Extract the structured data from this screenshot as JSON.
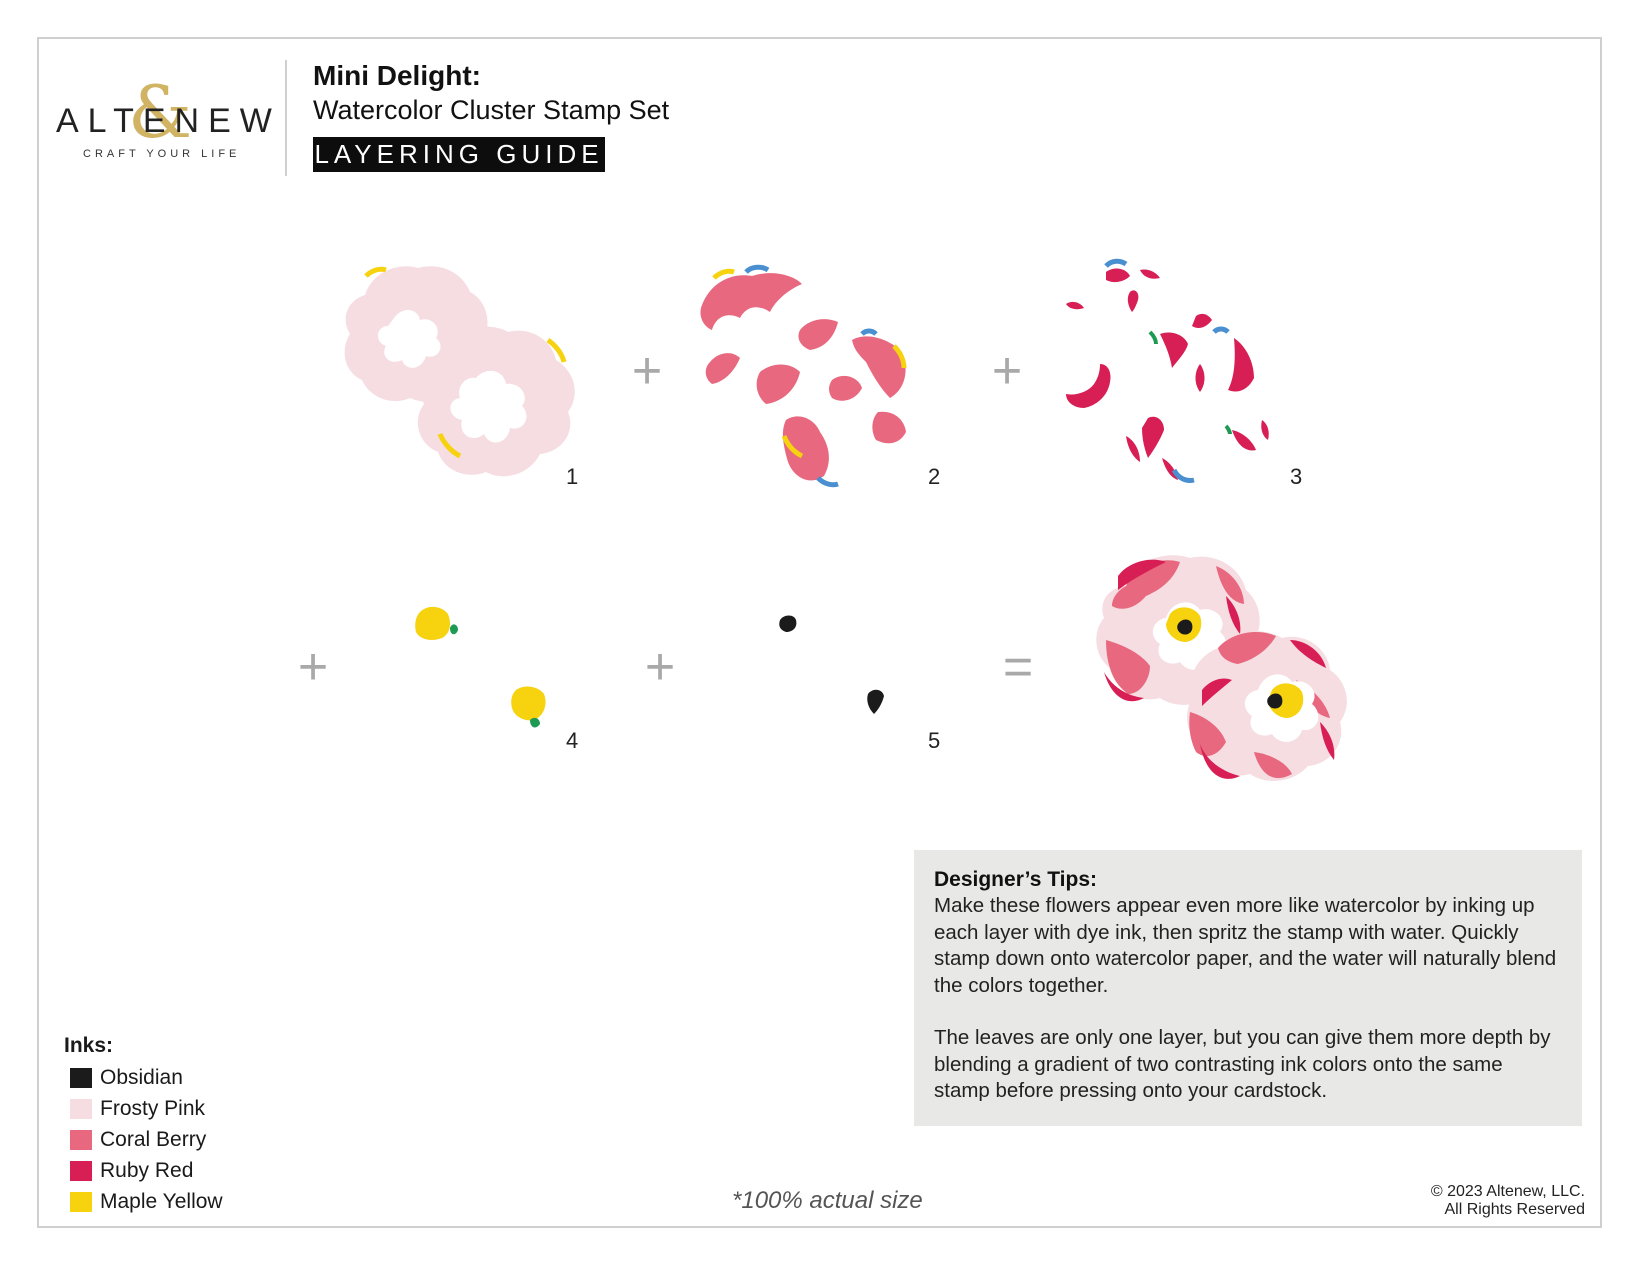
{
  "brand": {
    "wordmark": "ALTENEW",
    "tagline": "CRAFT YOUR LIFE",
    "ampersand": "&"
  },
  "header": {
    "title": "Mini Delight:",
    "subtitle": "Watercolor Cluster Stamp Set",
    "badge": "LAYERING GUIDE"
  },
  "steps": [
    {
      "number": "1"
    },
    {
      "number": "2"
    },
    {
      "number": "3"
    },
    {
      "number": "4"
    },
    {
      "number": "5"
    }
  ],
  "operators": {
    "plus": "+",
    "equals": "="
  },
  "tips": {
    "title": "Designer’s Tips:",
    "paragraphs": [
      "Make these flowers appear even more like watercolor by inking up each layer with dye ink, then spritz the stamp with water. Quickly stamp down onto watercolor paper, and the water will naturally blend the colors together.",
      "The leaves are only one layer, but you can give them more depth by blending a gradient of two contrasting ink colors onto the same stamp before pressing onto your cardstock."
    ]
  },
  "inks": {
    "title": "Inks:",
    "items": [
      {
        "name": "Obsidian",
        "color": "#1b1b1b"
      },
      {
        "name": "Frosty Pink",
        "color": "#f5dde2"
      },
      {
        "name": "Coral Berry",
        "color": "#e8697f"
      },
      {
        "name": "Ruby Red",
        "color": "#d81f55"
      },
      {
        "name": "Maple Yellow",
        "color": "#f6d20f"
      }
    ]
  },
  "footer": {
    "note": "*100% actual size",
    "copyright_line1": "© 2023 Altenew, LLC.",
    "copyright_line2": "All Rights Reserved"
  },
  "colors": {
    "frosty": "#f5dde2",
    "coral": "#e8697f",
    "ruby": "#d81f55",
    "yellow": "#f6d20f",
    "obsidian": "#1b1b1b",
    "blue": "#4a8fd0",
    "green": "#1f9a54",
    "operator": "#a9a9a9"
  }
}
